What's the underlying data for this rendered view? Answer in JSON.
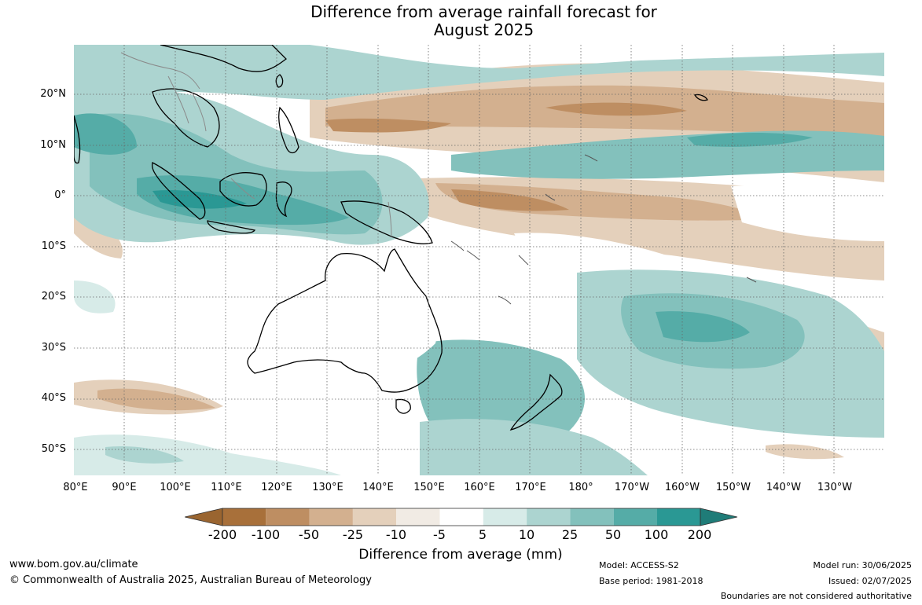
{
  "title": {
    "line1": "Difference from average rainfall forecast for",
    "line2": "August 2025"
  },
  "map": {
    "lat_labels": [
      "20°N",
      "10°N",
      "0°",
      "10°S",
      "20°S",
      "30°S",
      "40°S",
      "50°S"
    ],
    "lon_labels": [
      "80°E",
      "90°E",
      "100°E",
      "110°E",
      "120°E",
      "130°E",
      "140°E",
      "150°E",
      "160°E",
      "170°E",
      "180°",
      "170°W",
      "160°W",
      "150°W",
      "140°W",
      "130°W"
    ]
  },
  "colorbar": {
    "ticks": [
      "-200",
      "-100",
      "-50",
      "-25",
      "-10",
      "-5",
      "5",
      "10",
      "25",
      "50",
      "100",
      "200"
    ],
    "colors": [
      "#a8703a",
      "#be8e62",
      "#d3b08f",
      "#e4d0bb",
      "#f1ebe4",
      "#ffffff",
      "#d7ebe8",
      "#acd4d0",
      "#83c1bc",
      "#55aca7",
      "#2a9894"
    ],
    "under_color": "#9a6530",
    "over_color": "#1f7c78",
    "label": "Difference from average (mm)"
  },
  "footer": {
    "website": "www.bom.gov.au/climate",
    "copyright": "© Commonwealth of Australia 2025, Australian Bureau of Meteorology",
    "model": "Model: ACCESS-S2",
    "base_period": "Base period: 1981-2018",
    "model_run": "Model run: 30/06/2025",
    "issued": "Issued: 02/07/2025",
    "disclaimer": "Boundaries are not considered authoritative"
  }
}
